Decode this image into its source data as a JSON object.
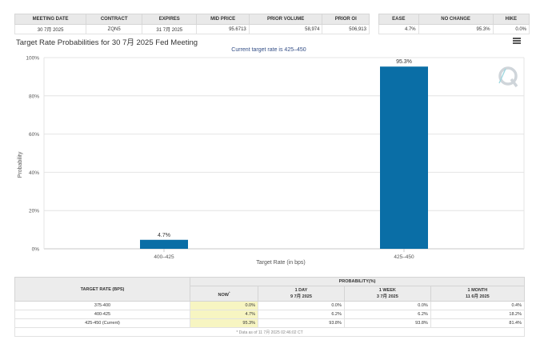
{
  "futures_table": {
    "headers": [
      "MEETING DATE",
      "CONTRACT",
      "EXPIRES",
      "MID PRICE",
      "PRIOR VOLUME",
      "PRIOR OI"
    ],
    "row": [
      "30 7月 2025",
      "ZQN5",
      "31 7月 2025",
      "95.6713",
      "58,974",
      "506,913"
    ]
  },
  "probability_summary": {
    "headers": [
      "EASE",
      "NO CHANGE",
      "HIKE"
    ],
    "row": [
      "4.7%",
      "95.3%",
      "0.0%"
    ]
  },
  "chart_header": {
    "title": "Target Rate Probabilities for 30 7月 2025 Fed Meeting"
  },
  "chart_data": {
    "type": "bar",
    "title": "Target Rate Probabilities for 30 7月 2025 Fed Meeting",
    "subtitle": "Current target rate is 425–450",
    "categories": [
      "400–425",
      "425–450"
    ],
    "values": [
      4.7,
      95.3
    ],
    "data_labels": [
      "4.7%",
      "95.3%"
    ],
    "xlabel": "Target Rate (in bps)",
    "ylabel": "Probability",
    "ylim": [
      0,
      100
    ],
    "yticks": [
      "0%",
      "20%",
      "40%",
      "60%",
      "80%",
      "100%"
    ],
    "grid": true,
    "bar_color": "#0a6ea6"
  },
  "prob_table": {
    "header_col": "TARGET RATE (BPS)",
    "header_group": "PROBABILITY(%)",
    "cols": [
      {
        "label": "NOW",
        "sub": "",
        "marker": "*"
      },
      {
        "label": "1 DAY",
        "sub": "9 7月 2025",
        "marker": ""
      },
      {
        "label": "1 WEEK",
        "sub": "3 7月 2025",
        "marker": ""
      },
      {
        "label": "1 MONTH",
        "sub": "11 6月 2025",
        "marker": ""
      }
    ],
    "rows": [
      {
        "rate": "375-400",
        "values": [
          "0.0%",
          "0.0%",
          "0.0%",
          "0.4%"
        ]
      },
      {
        "rate": "400-425",
        "values": [
          "4.7%",
          "6.2%",
          "6.2%",
          "18.2%"
        ]
      },
      {
        "rate": "425-450 (Current)",
        "values": [
          "95.3%",
          "93.8%",
          "93.8%",
          "81.4%"
        ]
      }
    ],
    "footnote": "* Data as of 11 7月 2025 02:46:02 CT"
  },
  "icons": {
    "menu": "hamburger-menu-icon",
    "watermark": "quikstrike-logo-icon"
  }
}
